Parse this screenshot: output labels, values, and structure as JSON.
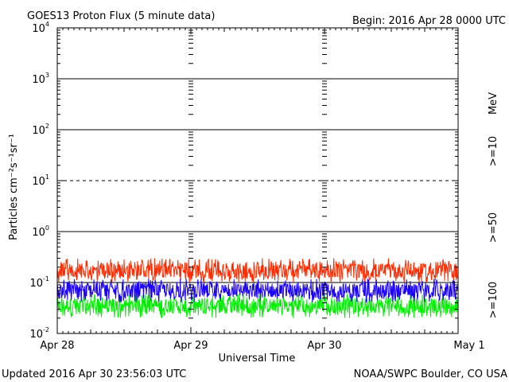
{
  "header": {
    "title": "GOES13 Proton Flux (5 minute data)",
    "begin": "Begin: 2016 Apr 28 0000 UTC"
  },
  "footer": {
    "updated": "Updated 2016 Apr 30 23:56:03 UTC",
    "source": "NOAA/SWPC Boulder, CO USA"
  },
  "legend": {
    "unit": "MeV",
    "entries": [
      {
        "label": ">=10",
        "color": "#ff2a00"
      },
      {
        "label": ">=50",
        "color": "#1a00ff"
      },
      {
        "label": ">=100",
        "color": "#00ee00"
      }
    ]
  },
  "chart_data": {
    "type": "line",
    "title": "GOES13 Proton Flux (5 minute data)",
    "xlabel": "Universal Time",
    "ylabel": "Particles cm⁻²s⁻¹sr⁻¹",
    "yscale": "log",
    "ylim": [
      0.01,
      10000
    ],
    "xlim": [
      "2016-04-28 00:00",
      "2016-05-01 00:00"
    ],
    "x_ticks": [
      "Apr 28",
      "Apr 29",
      "Apr 30",
      "May 1"
    ],
    "y_ticks": [
      {
        "base": "10",
        "exp": "-2"
      },
      {
        "base": "10",
        "exp": "-1"
      },
      {
        "base": "10",
        "exp": "0"
      },
      {
        "base": "10",
        "exp": "1"
      },
      {
        "base": "10",
        "exp": "2"
      },
      {
        "base": "10",
        "exp": "3"
      },
      {
        "base": "10",
        "exp": "4"
      }
    ],
    "reference_lines": [
      {
        "value": 0.1,
        "style": "solid"
      },
      {
        "value": 1,
        "style": "solid"
      },
      {
        "value": 10,
        "style": "dashed"
      },
      {
        "value": 100,
        "style": "solid"
      },
      {
        "value": 1000,
        "style": "solid"
      }
    ],
    "interval_minutes": 5,
    "series": [
      {
        "name": ">=10 MeV",
        "color": "#ff2a00",
        "typical_range": [
          0.1,
          0.3
        ],
        "median": 0.17
      },
      {
        "name": ">=50 MeV",
        "color": "#1a00ff",
        "typical_range": [
          0.04,
          0.12
        ],
        "median": 0.07
      },
      {
        "name": ">=100 MeV",
        "color": "#00ee00",
        "typical_range": [
          0.02,
          0.06
        ],
        "median": 0.035
      }
    ]
  }
}
